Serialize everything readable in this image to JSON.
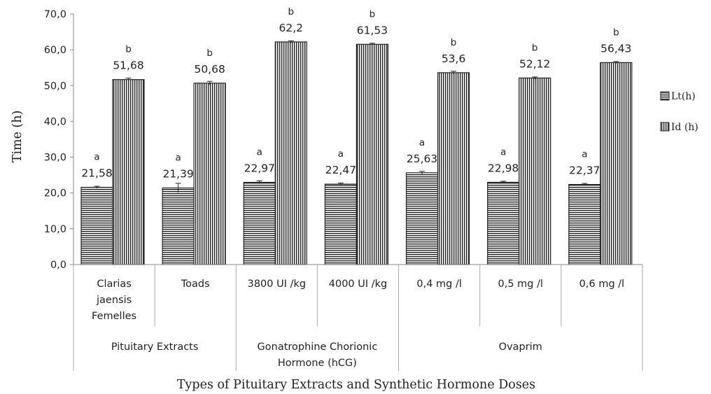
{
  "chart_data": {
    "type": "bar",
    "xlabel": "Types of Pituitary Extracts and Synthetic Hormone Doses",
    "ylabel": "Time (h)",
    "ylim": [
      0,
      70
    ],
    "yticks": [
      "0,0",
      "10,0",
      "20,0",
      "30,0",
      "40,0",
      "50,0",
      "60,0",
      "70,0"
    ],
    "grid": false,
    "legend_position": "right",
    "categories": [
      [
        "Clarias",
        "jaensis",
        "Femelles"
      ],
      [
        "Toads"
      ],
      [
        "3800 UI /kg"
      ],
      [
        "4000 UI /kg"
      ],
      [
        "0,4 mg /l"
      ],
      [
        "0,5 mg /l"
      ],
      [
        "0,6 mg /l"
      ]
    ],
    "groups": [
      {
        "label": [
          "Pituitary Extracts"
        ],
        "span": 2
      },
      {
        "label": [
          "Gonatrophine Chorionic",
          "Hormone (hCG)"
        ],
        "span": 2
      },
      {
        "label": [
          "Ovaprim"
        ],
        "span": 3
      }
    ],
    "series": [
      {
        "name": "Lt(h)",
        "pattern": "horizontal-lines",
        "values": [
          21.58,
          21.39,
          22.97,
          22.47,
          25.63,
          22.98,
          22.37
        ],
        "value_labels": [
          "21,58",
          "21,39",
          "22,97",
          "22,47",
          "25,63",
          "22,98",
          "22,37"
        ],
        "significance": [
          "a",
          "a",
          "a",
          "a",
          "a",
          "a",
          "a"
        ],
        "error": [
          0.3,
          1.3,
          0.4,
          0.3,
          0.4,
          0.3,
          0.3
        ]
      },
      {
        "name": "Id (h)",
        "pattern": "vertical-lines",
        "values": [
          51.68,
          50.68,
          62.2,
          61.53,
          53.6,
          52.12,
          56.43
        ],
        "value_labels": [
          "51,68",
          "50,68",
          "62,2",
          "61,53",
          "53,6",
          "52,12",
          "56,43"
        ],
        "significance": [
          "b",
          "b",
          "b",
          "b",
          "b",
          "b",
          "b"
        ],
        "error": [
          0.4,
          0.5,
          0.3,
          0.3,
          0.4,
          0.3,
          0.3
        ]
      }
    ],
    "colors": {
      "bar_stroke": "#222222",
      "pattern": "#222222",
      "axis": "#888888"
    }
  }
}
